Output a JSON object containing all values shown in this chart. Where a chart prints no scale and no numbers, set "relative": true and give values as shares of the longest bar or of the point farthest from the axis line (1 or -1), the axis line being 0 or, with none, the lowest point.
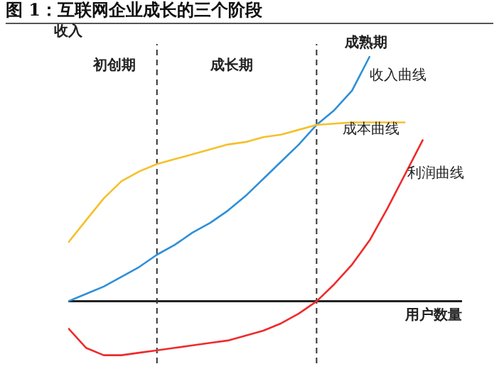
{
  "chart_data": {
    "type": "line",
    "title": "图 1：互联网企业成长的三个阶段",
    "xlabel": "用户数量",
    "ylabel": "收入",
    "relative": true,
    "marker": "none",
    "line_style": "solid",
    "tick_labels": false,
    "categories": [
      null,
      null,
      null,
      null,
      null,
      null,
      null,
      null,
      null,
      null,
      null,
      null,
      null,
      null,
      null,
      null,
      null,
      null,
      null,
      null,
      null
    ],
    "series": [
      {
        "name": "收入曲线",
        "color": "#2e8fd8",
        "values": [
          0,
          0.03,
          0.06,
          0.1,
          0.14,
          0.19,
          0.23,
          0.28,
          0.32,
          0.37,
          0.43,
          0.5,
          0.57,
          0.64,
          0.72,
          0.78,
          0.86,
          1,
          null,
          null,
          null
        ]
      },
      {
        "name": "成本曲线",
        "color": "#f5c02a",
        "values": [
          0.24,
          0.33,
          0.42,
          0.49,
          0.53,
          0.56,
          0.58,
          0.6,
          0.62,
          0.64,
          0.65,
          0.67,
          0.68,
          0.7,
          0.72,
          0.725,
          0.73,
          0.73,
          0.73,
          0.73,
          null
        ]
      },
      {
        "name": "利润曲线",
        "color": "#ee2b2b",
        "values": [
          -0.11,
          -0.19,
          -0.22,
          -0.22,
          -0.21,
          -0.2,
          -0.19,
          -0.18,
          -0.17,
          -0.16,
          -0.14,
          -0.12,
          -0.09,
          -0.05,
          0,
          0.07,
          0.15,
          0.25,
          0.38,
          0.52,
          0.66
        ]
      }
    ],
    "annotations": [
      "初创期",
      "成长期",
      "成熟期"
    ]
  }
}
